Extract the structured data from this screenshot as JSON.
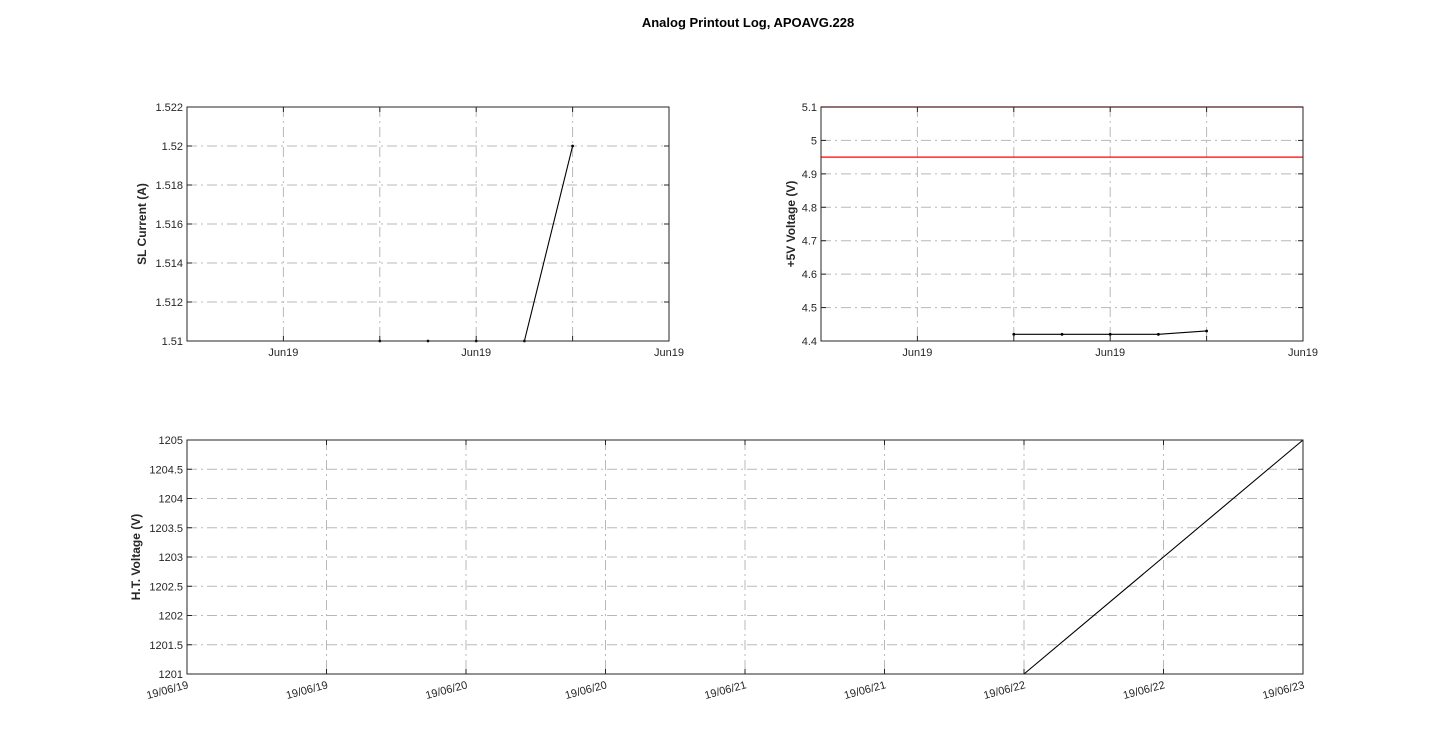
{
  "figure_title": "Analog Printout Log, APOAVG.228",
  "chart_data": [
    {
      "type": "line",
      "ylabel": "SL Current (A)",
      "xlim": [
        0,
        100
      ],
      "ylim": [
        1.51,
        1.522
      ],
      "grid": true,
      "x_ticks": [
        {
          "x": 0,
          "label": ""
        },
        {
          "x": 20,
          "label": "Jun19"
        },
        {
          "x": 40,
          "label": ""
        },
        {
          "x": 60,
          "label": "Jun19"
        },
        {
          "x": 80,
          "label": ""
        },
        {
          "x": 100,
          "label": "Jun19"
        }
      ],
      "y_ticks": [
        {
          "y": 1.51,
          "label": "1.51"
        },
        {
          "y": 1.512,
          "label": "1.512"
        },
        {
          "y": 1.514,
          "label": "1.514"
        },
        {
          "y": 1.516,
          "label": "1.516"
        },
        {
          "y": 1.518,
          "label": "1.518"
        },
        {
          "y": 1.52,
          "label": "1.52"
        },
        {
          "y": 1.522,
          "label": "1.522"
        }
      ],
      "series": [
        {
          "color": "#000000",
          "markers": true,
          "x": [
            40,
            50,
            60,
            70,
            80
          ],
          "y": [
            1.51,
            1.51,
            1.51,
            1.51,
            1.52
          ]
        }
      ],
      "ref_lines": []
    },
    {
      "type": "line",
      "ylabel": "+5V Voltage (V)",
      "xlim": [
        0,
        100
      ],
      "ylim": [
        4.4,
        5.1
      ],
      "grid": true,
      "x_ticks": [
        {
          "x": 0,
          "label": ""
        },
        {
          "x": 20,
          "label": "Jun19"
        },
        {
          "x": 40,
          "label": ""
        },
        {
          "x": 60,
          "label": "Jun19"
        },
        {
          "x": 80,
          "label": ""
        },
        {
          "x": 100,
          "label": "Jun19"
        }
      ],
      "y_ticks": [
        {
          "y": 4.4,
          "label": "4.4"
        },
        {
          "y": 4.5,
          "label": "4.5"
        },
        {
          "y": 4.6,
          "label": "4.6"
        },
        {
          "y": 4.7,
          "label": "4.7"
        },
        {
          "y": 4.8,
          "label": "4.8"
        },
        {
          "y": 4.9,
          "label": "4.9"
        },
        {
          "y": 5.0,
          "label": "5"
        },
        {
          "y": 5.1,
          "label": "5.1"
        }
      ],
      "series": [
        {
          "color": "#000000",
          "markers": true,
          "x": [
            40,
            50,
            60,
            70,
            80
          ],
          "y": [
            4.42,
            4.42,
            4.42,
            4.42,
            4.43
          ]
        }
      ],
      "ref_lines": [
        {
          "y": 5.1,
          "color": "#ff0000"
        },
        {
          "y": 4.95,
          "color": "#ff0000"
        }
      ]
    },
    {
      "type": "line",
      "ylabel": "H.T. Voltage (V)",
      "xlim": [
        0,
        8
      ],
      "ylim": [
        1201,
        1205
      ],
      "grid": true,
      "x_ticks": [
        {
          "x": 0,
          "label": "19/06/19"
        },
        {
          "x": 1,
          "label": "19/06/19"
        },
        {
          "x": 2,
          "label": "19/06/20"
        },
        {
          "x": 3,
          "label": "19/06/20"
        },
        {
          "x": 4,
          "label": "19/06/21"
        },
        {
          "x": 5,
          "label": "19/06/21"
        },
        {
          "x": 6,
          "label": "19/06/22"
        },
        {
          "x": 7,
          "label": "19/06/22"
        },
        {
          "x": 8,
          "label": "19/06/23"
        }
      ],
      "y_ticks": [
        {
          "y": 1201,
          "label": "1201"
        },
        {
          "y": 1201.5,
          "label": "1201.5"
        },
        {
          "y": 1202,
          "label": "1202"
        },
        {
          "y": 1202.5,
          "label": "1202.5"
        },
        {
          "y": 1203,
          "label": "1203"
        },
        {
          "y": 1203.5,
          "label": "1203.5"
        },
        {
          "y": 1204,
          "label": "1204"
        },
        {
          "y": 1204.5,
          "label": "1204.5"
        },
        {
          "y": 1205,
          "label": "1205"
        }
      ],
      "series": [
        {
          "color": "#000000",
          "markers": false,
          "x": [
            0,
            6,
            8
          ],
          "y": [
            1201,
            1201,
            1205
          ]
        }
      ],
      "ref_lines": []
    }
  ]
}
